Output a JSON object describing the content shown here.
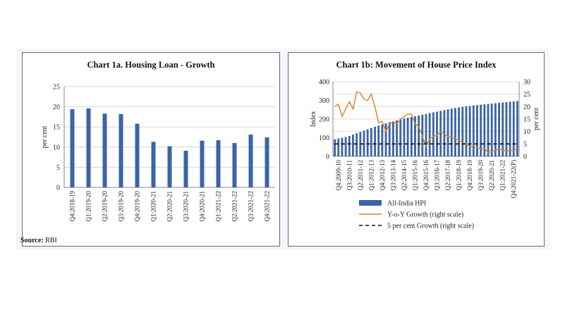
{
  "source": {
    "label": "Source:",
    "text": "RBI"
  },
  "chart_data": [
    {
      "type": "bar",
      "title": "Chart 1a. Housing Loan - Growth",
      "ylabel": "per cent",
      "ylim": [
        0,
        25
      ],
      "yticks": [
        0,
        5,
        10,
        15,
        20,
        25
      ],
      "categories": [
        "Q4:2018-19",
        "Q1:2019-20",
        "Q2:2019-20",
        "Q3:2019-20",
        "Q4:2019-20",
        "Q1:2020-21",
        "Q2:2020-21",
        "Q3:2020-21",
        "Q4:2020-21",
        "Q1:2021-22",
        "Q2:2021-22",
        "Q3:2021-22",
        "Q4:2021-22"
      ],
      "values": [
        19.4,
        19.6,
        18.3,
        18.2,
        15.8,
        11.3,
        10.2,
        9.1,
        11.6,
        11.7,
        11.0,
        13.1,
        12.4
      ],
      "bar_color": "#3a64a6",
      "grid": true
    },
    {
      "type": "bar+line",
      "title": "Chart 1b: Movement of House Price Index",
      "ylabel_left": "Index",
      "ylabel_right": "per cent",
      "ylim_left": [
        0,
        400
      ],
      "yticks_left": [
        0,
        100,
        200,
        300,
        400
      ],
      "ylim_right": [
        0,
        30
      ],
      "yticks_right": [
        0,
        5,
        10,
        15,
        20,
        25,
        30
      ],
      "xtick_labels": [
        "Q4:2009-10",
        "Q3:2010-11",
        "Q2:2011-12",
        "Q1:2012-13",
        "Q4:2012-13",
        "Q3:2013-14",
        "Q2:2014-15",
        "Q1:2015-16",
        "Q4:2015-16",
        "Q3:2016-17",
        "Q2:2017-18",
        "Q1:2018-19",
        "Q4:2018-19",
        "Q3:2019-20",
        "Q2:2020-21",
        "Q1:2021-22",
        "Q4:2021-22(P)"
      ],
      "series": [
        {
          "name": "All-India HPI",
          "kind": "bar",
          "color": "#3a64a6",
          "values": [
            92,
            96,
            100,
            104,
            110,
            117,
            124,
            131,
            138,
            145,
            152,
            159,
            165,
            171,
            177,
            183,
            188,
            193,
            198,
            203,
            207,
            211,
            215,
            219,
            223,
            227,
            232,
            236,
            240,
            244,
            248,
            252,
            256,
            259,
            262,
            265,
            268,
            270,
            273,
            275,
            277,
            279,
            281,
            283,
            285,
            287,
            289,
            291,
            293,
            295,
            297
          ]
        },
        {
          "name": "Y-o-Y Growth (right scale)",
          "kind": "line",
          "axis": "right",
          "color": "#d9822b",
          "values": [
            20,
            21,
            16,
            19,
            22,
            19,
            26,
            25.5,
            23,
            22.5,
            25,
            20,
            13.5,
            14,
            10,
            13,
            14,
            13,
            15,
            16,
            17,
            17,
            13,
            12,
            8,
            4,
            7,
            8,
            8.5,
            10,
            9,
            8,
            7.5,
            7,
            6.5,
            5.5,
            5,
            4,
            4,
            3.5,
            3,
            3.2,
            1.5,
            2,
            2.5,
            3,
            2.5,
            2,
            2.5,
            2.5,
            3
          ]
        },
        {
          "name": "5 per cent Growth (right scale)",
          "kind": "line",
          "axis": "right",
          "style": "dashed",
          "color": "#111111",
          "values": [
            5,
            5,
            5,
            5,
            5,
            5,
            5,
            5,
            5,
            5,
            5,
            5,
            5,
            5,
            5,
            5,
            5,
            5,
            5,
            5,
            5,
            5,
            5,
            5,
            5,
            5,
            5,
            5,
            5,
            5,
            5,
            5,
            5,
            5,
            5,
            5,
            5,
            5,
            5,
            5,
            5,
            5,
            5,
            5,
            5,
            5,
            5,
            5,
            5,
            5,
            5
          ]
        }
      ],
      "legend_position": "bottom",
      "grid": true
    }
  ]
}
